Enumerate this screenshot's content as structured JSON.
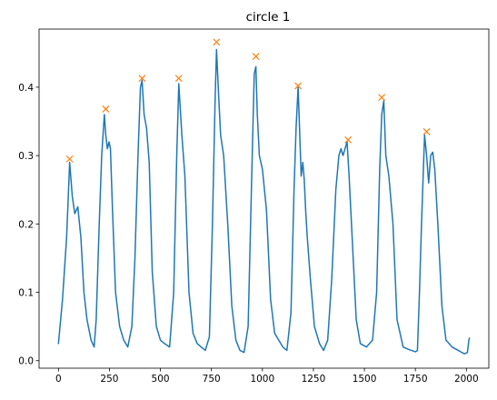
{
  "chart_data": {
    "type": "line",
    "title": "circle 1",
    "xlabel": "",
    "ylabel": "",
    "xlim": [
      -95,
      2110
    ],
    "ylim": [
      -0.011,
      0.485
    ],
    "x_ticks": [
      0,
      250,
      500,
      750,
      1000,
      1250,
      1500,
      1750,
      2000
    ],
    "y_ticks": [
      0.0,
      0.1,
      0.2,
      0.3,
      0.4
    ],
    "x_tick_labels": [
      "0",
      "250",
      "500",
      "750",
      "1000",
      "1250",
      "1500",
      "1750",
      "2000"
    ],
    "y_tick_labels": [
      "0.0",
      "0.1",
      "0.2",
      "0.3",
      "0.4"
    ],
    "grid": false,
    "colors": {
      "line": "#1f77b4",
      "peaks": "#ff7f0e"
    },
    "series": [
      {
        "marker": "line",
        "x": [
          0,
          20,
          40,
          55,
          68,
          80,
          95,
          110,
          125,
          140,
          160,
          175,
          185,
          200,
          212,
          225,
          232,
          240,
          248,
          255,
          265,
          280,
          300,
          320,
          340,
          360,
          375,
          390,
          402,
          410,
          420,
          432,
          445,
          460,
          480,
          500,
          520,
          545,
          565,
          580,
          590,
          605,
          620,
          640,
          660,
          680,
          700,
          720,
          740,
          755,
          768,
          775,
          785,
          795,
          810,
          830,
          850,
          870,
          890,
          910,
          930,
          950,
          960,
          968,
          975,
          985,
          1000,
          1020,
          1040,
          1060,
          1080,
          1100,
          1120,
          1140,
          1155,
          1165,
          1175,
          1182,
          1190,
          1198,
          1205,
          1212,
          1220,
          1235,
          1255,
          1280,
          1300,
          1320,
          1340,
          1360,
          1375,
          1385,
          1395,
          1405,
          1415,
          1425,
          1440,
          1460,
          1480,
          1510,
          1540,
          1560,
          1575,
          1585,
          1595,
          1605,
          1620,
          1640,
          1660,
          1690,
          1720,
          1750,
          1760,
          1770,
          1780,
          1795,
          1805,
          1815,
          1825,
          1835,
          1845,
          1860,
          1880,
          1900,
          1930,
          1960,
          1990,
          2005,
          2012,
          2015
        ],
        "y": [
          0.025,
          0.09,
          0.18,
          0.29,
          0.24,
          0.215,
          0.225,
          0.18,
          0.1,
          0.06,
          0.03,
          0.02,
          0.06,
          0.2,
          0.3,
          0.36,
          0.33,
          0.31,
          0.32,
          0.31,
          0.22,
          0.1,
          0.05,
          0.03,
          0.02,
          0.05,
          0.15,
          0.3,
          0.4,
          0.41,
          0.36,
          0.34,
          0.29,
          0.13,
          0.05,
          0.03,
          0.025,
          0.02,
          0.1,
          0.3,
          0.405,
          0.33,
          0.27,
          0.1,
          0.04,
          0.025,
          0.02,
          0.015,
          0.035,
          0.2,
          0.38,
          0.455,
          0.39,
          0.33,
          0.3,
          0.2,
          0.08,
          0.03,
          0.015,
          0.012,
          0.05,
          0.3,
          0.42,
          0.43,
          0.36,
          0.3,
          0.28,
          0.22,
          0.09,
          0.04,
          0.03,
          0.02,
          0.015,
          0.07,
          0.25,
          0.34,
          0.4,
          0.34,
          0.27,
          0.29,
          0.265,
          0.22,
          0.18,
          0.12,
          0.05,
          0.025,
          0.015,
          0.03,
          0.12,
          0.25,
          0.3,
          0.31,
          0.3,
          0.31,
          0.32,
          0.27,
          0.18,
          0.06,
          0.025,
          0.02,
          0.03,
          0.1,
          0.28,
          0.36,
          0.38,
          0.3,
          0.27,
          0.2,
          0.06,
          0.02,
          0.016,
          0.013,
          0.015,
          0.1,
          0.2,
          0.33,
          0.3,
          0.26,
          0.3,
          0.305,
          0.28,
          0.2,
          0.08,
          0.03,
          0.02,
          0.015,
          0.01,
          0.012,
          0.03,
          0.033
        ]
      },
      {
        "marker": "x",
        "x": [
          55,
          232,
          410,
          590,
          775,
          968,
          1175,
          1420,
          1585,
          1805
        ],
        "y": [
          0.295,
          0.368,
          0.413,
          0.413,
          0.466,
          0.445,
          0.402,
          0.323,
          0.385,
          0.335
        ]
      }
    ]
  }
}
